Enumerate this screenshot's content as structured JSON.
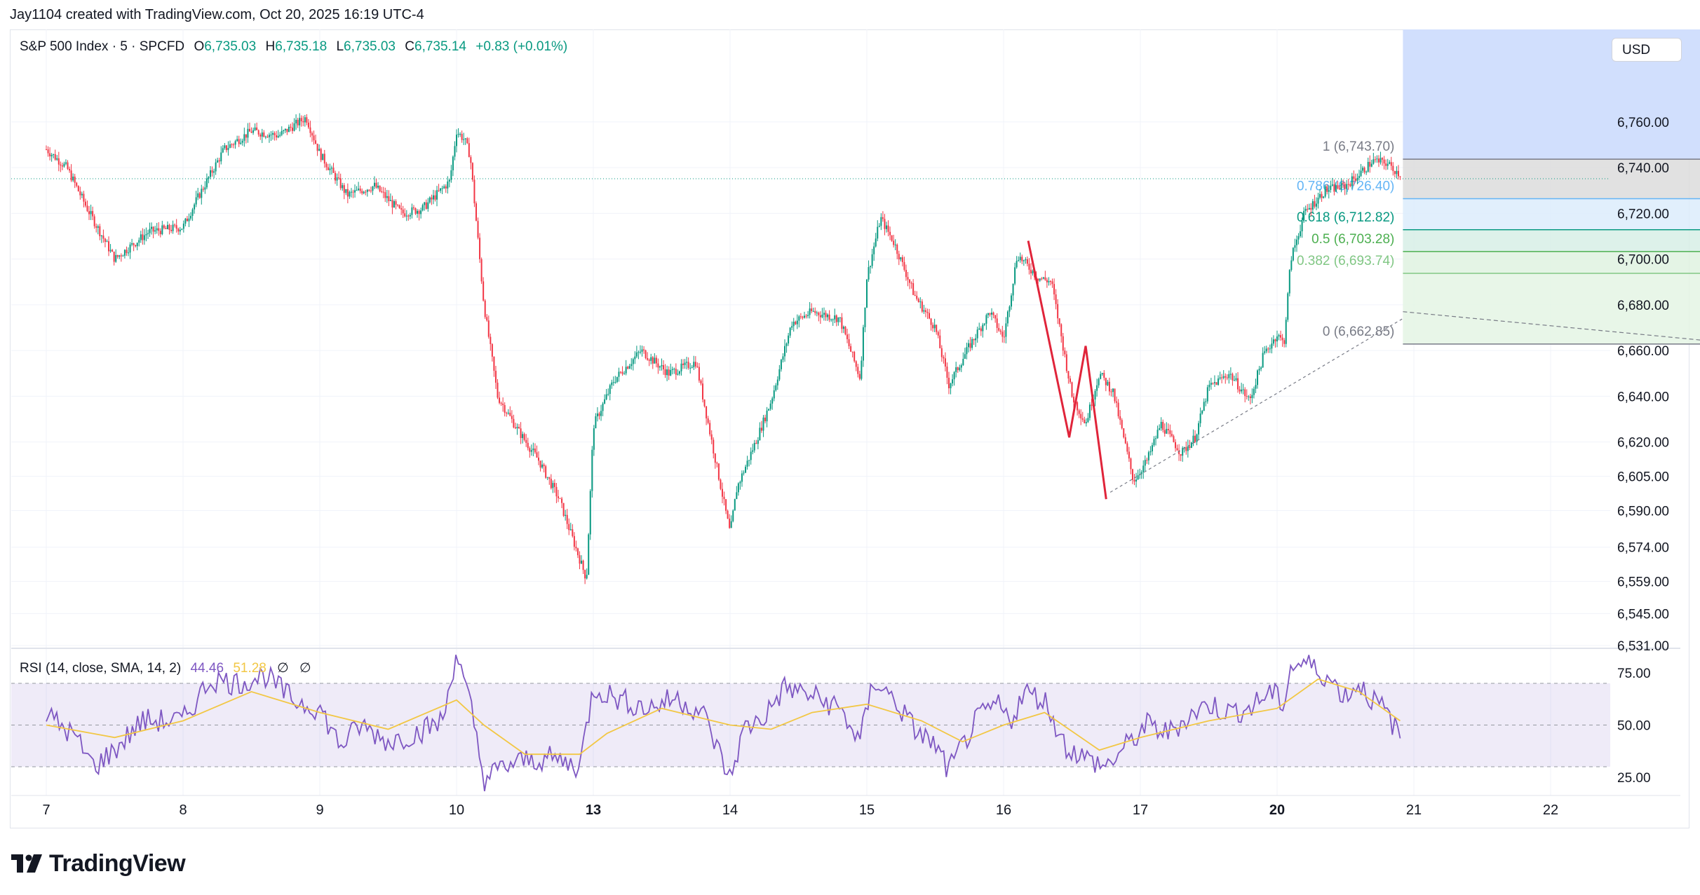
{
  "header": {
    "created_text": "Jay1104 created with TradingView.com, Oct 20, 2025 16:19 UTC-4"
  },
  "legend": {
    "symbol": "S&P 500 Index · 5 · SPCFD",
    "open_label": "O",
    "open": "6,735.03",
    "high_label": "H",
    "high": "6,735.18",
    "low_label": "L",
    "low": "6,735.03",
    "close_label": "C",
    "close": "6,735.14",
    "change": "+0.83 (+0.01%)"
  },
  "currency": "USD",
  "rsi_legend": {
    "label": "RSI (14, close, SMA, 14, 2)",
    "rsi": "44.46",
    "sma": "51.28",
    "icon1": "∅",
    "icon2": "∅"
  },
  "logo": {
    "text": "TradingView"
  },
  "colors": {
    "up": "#089981",
    "down": "#f23645",
    "rsi": "#7e57c2",
    "rsi_sma": "#f2c744",
    "fib_line": "#787b86"
  },
  "chart_data": {
    "type": "candlestick",
    "ylim": [
      6531,
      6771
    ],
    "price_ticks": [
      "6,760.00",
      "6,740.00",
      "6,720.00",
      "6,700.00",
      "6,680.00",
      "6,660.00",
      "6,640.00",
      "6,620.00",
      "6,605.00",
      "6,590.00",
      "6,574.00",
      "6,559.00",
      "6,545.00",
      "6,531.00"
    ],
    "x_ticks": [
      {
        "label": "7",
        "bold": false
      },
      {
        "label": "8",
        "bold": false
      },
      {
        "label": "9",
        "bold": false
      },
      {
        "label": "10",
        "bold": false
      },
      {
        "label": "13",
        "bold": true
      },
      {
        "label": "14",
        "bold": false
      },
      {
        "label": "15",
        "bold": false
      },
      {
        "label": "16",
        "bold": false
      },
      {
        "label": "17",
        "bold": false
      },
      {
        "label": "20",
        "bold": true
      },
      {
        "label": "21",
        "bold": false
      },
      {
        "label": "22",
        "bold": false
      }
    ],
    "price_path": [
      [
        0,
        6748
      ],
      [
        0.15,
        6740
      ],
      [
        0.3,
        6722
      ],
      [
        0.5,
        6700
      ],
      [
        0.75,
        6712
      ],
      [
        1,
        6714
      ],
      [
        1.1,
        6726
      ],
      [
        1.3,
        6748
      ],
      [
        1.5,
        6756
      ],
      [
        1.7,
        6754
      ],
      [
        1.9,
        6762
      ],
      [
        2,
        6746
      ],
      [
        2.2,
        6728
      ],
      [
        2.4,
        6732
      ],
      [
        2.6,
        6720
      ],
      [
        2.75,
        6722
      ],
      [
        2.95,
        6734
      ],
      [
        3,
        6756
      ],
      [
        3.06,
        6752
      ],
      [
        3.1,
        6745
      ],
      [
        3.2,
        6680
      ],
      [
        3.3,
        6640
      ],
      [
        3.45,
        6625
      ],
      [
        3.6,
        6612
      ],
      [
        3.75,
        6595
      ],
      [
        3.95,
        6560
      ],
      [
        4,
        6627
      ],
      [
        4.15,
        6647
      ],
      [
        4.35,
        6660
      ],
      [
        4.55,
        6650
      ],
      [
        4.75,
        6655
      ],
      [
        5,
        6580
      ],
      [
        5.05,
        6600
      ],
      [
        5.2,
        6622
      ],
      [
        5.3,
        6638
      ],
      [
        5.45,
        6672
      ],
      [
        5.6,
        6677
      ],
      [
        5.8,
        6674
      ],
      [
        5.95,
        6648
      ],
      [
        6,
        6692
      ],
      [
        6.1,
        6718
      ],
      [
        6.2,
        6707
      ],
      [
        6.35,
        6684
      ],
      [
        6.5,
        6670
      ],
      [
        6.6,
        6645
      ],
      [
        6.75,
        6662
      ],
      [
        6.9,
        6677
      ],
      [
        7,
        6665
      ],
      [
        7.1,
        6702
      ],
      [
        7.25,
        6692
      ],
      [
        7.35,
        6690
      ],
      [
        7.5,
        6640
      ],
      [
        7.6,
        6628
      ],
      [
        7.7,
        6650
      ],
      [
        7.8,
        6642
      ],
      [
        7.95,
        6603
      ],
      [
        8.05,
        6612
      ],
      [
        8.15,
        6628
      ],
      [
        8.3,
        6615
      ],
      [
        8.4,
        6622
      ],
      [
        8.5,
        6644
      ],
      [
        8.65,
        6650
      ],
      [
        8.8,
        6638
      ],
      [
        8.9,
        6658
      ],
      [
        9,
        6667
      ],
      [
        9.05,
        6663
      ],
      [
        9.1,
        6700
      ],
      [
        9.2,
        6720
      ],
      [
        9.35,
        6730
      ],
      [
        9.5,
        6732
      ],
      [
        9.6,
        6737
      ],
      [
        9.7,
        6743
      ],
      [
        9.8,
        6742
      ],
      [
        9.9,
        6737
      ]
    ],
    "fibonacci": [
      {
        "label": "1 (6,743.70)",
        "level": 1,
        "price": 6743.7,
        "color": "#787b86"
      },
      {
        "label": "0.786 (6,726.40)",
        "level": 0.786,
        "price": 6726.4,
        "color": "#64b5f6"
      },
      {
        "label": "0.618 (6,712.82)",
        "level": 0.618,
        "price": 6712.82,
        "color": "#089981"
      },
      {
        "label": "0.5 (6,703.28)",
        "level": 0.5,
        "price": 6703.28,
        "color": "#4caf50"
      },
      {
        "label": "0.382 (6,693.74)",
        "level": 0.382,
        "price": 6693.74,
        "color": "#81c784"
      },
      {
        "label": "0 (6,662.85)",
        "level": 0,
        "price": 6662.85,
        "color": "#787b86"
      }
    ],
    "highlight_box": {
      "x_start": 9.92,
      "x_end": 12.4,
      "y_top": 6771,
      "y_bottom": 6743.7
    },
    "last_price": 6735.14,
    "pattern_lines": [
      [
        7.18,
        6708
      ],
      [
        7.48,
        6622
      ],
      [
        7.6,
        6662
      ],
      [
        7.75,
        6595
      ]
    ],
    "trend_line": [
      [
        7.78,
        6598
      ],
      [
        9.92,
        6674
      ]
    ],
    "dashed_projection": [
      [
        9.92,
        6677
      ],
      [
        12.4,
        6662.85
      ]
    ],
    "rsi": {
      "ylim": [
        10,
        95
      ],
      "ticks": [
        "75.00",
        "50.00",
        "25.00"
      ],
      "band": [
        30,
        70
      ],
      "midline": 50,
      "path": [
        [
          0,
          55
        ],
        [
          0.2,
          45
        ],
        [
          0.35,
          30
        ],
        [
          0.5,
          38
        ],
        [
          0.7,
          52
        ],
        [
          1,
          52
        ],
        [
          1.2,
          72
        ],
        [
          1.4,
          70
        ],
        [
          1.6,
          74
        ],
        [
          1.8,
          62
        ],
        [
          2,
          58
        ],
        [
          2.15,
          40
        ],
        [
          2.3,
          50
        ],
        [
          2.5,
          42
        ],
        [
          2.7,
          46
        ],
        [
          2.9,
          52
        ],
        [
          3,
          86
        ],
        [
          3.06,
          68
        ],
        [
          3.1,
          60
        ],
        [
          3.2,
          24
        ],
        [
          3.35,
          30
        ],
        [
          3.5,
          33
        ],
        [
          3.7,
          34
        ],
        [
          3.9,
          30
        ],
        [
          4,
          68
        ],
        [
          4.2,
          62
        ],
        [
          4.4,
          58
        ],
        [
          4.6,
          63
        ],
        [
          4.8,
          56
        ],
        [
          5,
          24
        ],
        [
          5.1,
          48
        ],
        [
          5.25,
          54
        ],
        [
          5.4,
          68
        ],
        [
          5.6,
          64
        ],
        [
          5.8,
          58
        ],
        [
          5.95,
          42
        ],
        [
          6.05,
          72
        ],
        [
          6.2,
          62
        ],
        [
          6.35,
          48
        ],
        [
          6.5,
          40
        ],
        [
          6.6,
          28
        ],
        [
          6.8,
          52
        ],
        [
          6.95,
          60
        ],
        [
          7.05,
          52
        ],
        [
          7.15,
          66
        ],
        [
          7.3,
          62
        ],
        [
          7.45,
          40
        ],
        [
          7.6,
          34
        ],
        [
          7.75,
          30
        ],
        [
          7.9,
          40
        ],
        [
          8.05,
          50
        ],
        [
          8.2,
          46
        ],
        [
          8.35,
          54
        ],
        [
          8.5,
          60
        ],
        [
          8.65,
          56
        ],
        [
          8.8,
          58
        ],
        [
          8.95,
          66
        ],
        [
          9.05,
          60
        ],
        [
          9.1,
          78
        ],
        [
          9.2,
          80
        ],
        [
          9.35,
          74
        ],
        [
          9.5,
          64
        ],
        [
          9.6,
          70
        ],
        [
          9.7,
          62
        ],
        [
          9.8,
          56
        ],
        [
          9.9,
          44
        ]
      ],
      "sma_path": [
        [
          0,
          50
        ],
        [
          0.5,
          44
        ],
        [
          1,
          52
        ],
        [
          1.5,
          66
        ],
        [
          2,
          56
        ],
        [
          2.5,
          48
        ],
        [
          3,
          62
        ],
        [
          3.2,
          50
        ],
        [
          3.5,
          36
        ],
        [
          3.9,
          36
        ],
        [
          4.1,
          46
        ],
        [
          4.5,
          58
        ],
        [
          5,
          50
        ],
        [
          5.3,
          48
        ],
        [
          5.6,
          56
        ],
        [
          6,
          60
        ],
        [
          6.4,
          52
        ],
        [
          6.7,
          42
        ],
        [
          7,
          50
        ],
        [
          7.3,
          56
        ],
        [
          7.7,
          38
        ],
        [
          8,
          44
        ],
        [
          8.5,
          52
        ],
        [
          9,
          58
        ],
        [
          9.3,
          72
        ],
        [
          9.6,
          66
        ],
        [
          9.9,
          52
        ]
      ]
    }
  }
}
